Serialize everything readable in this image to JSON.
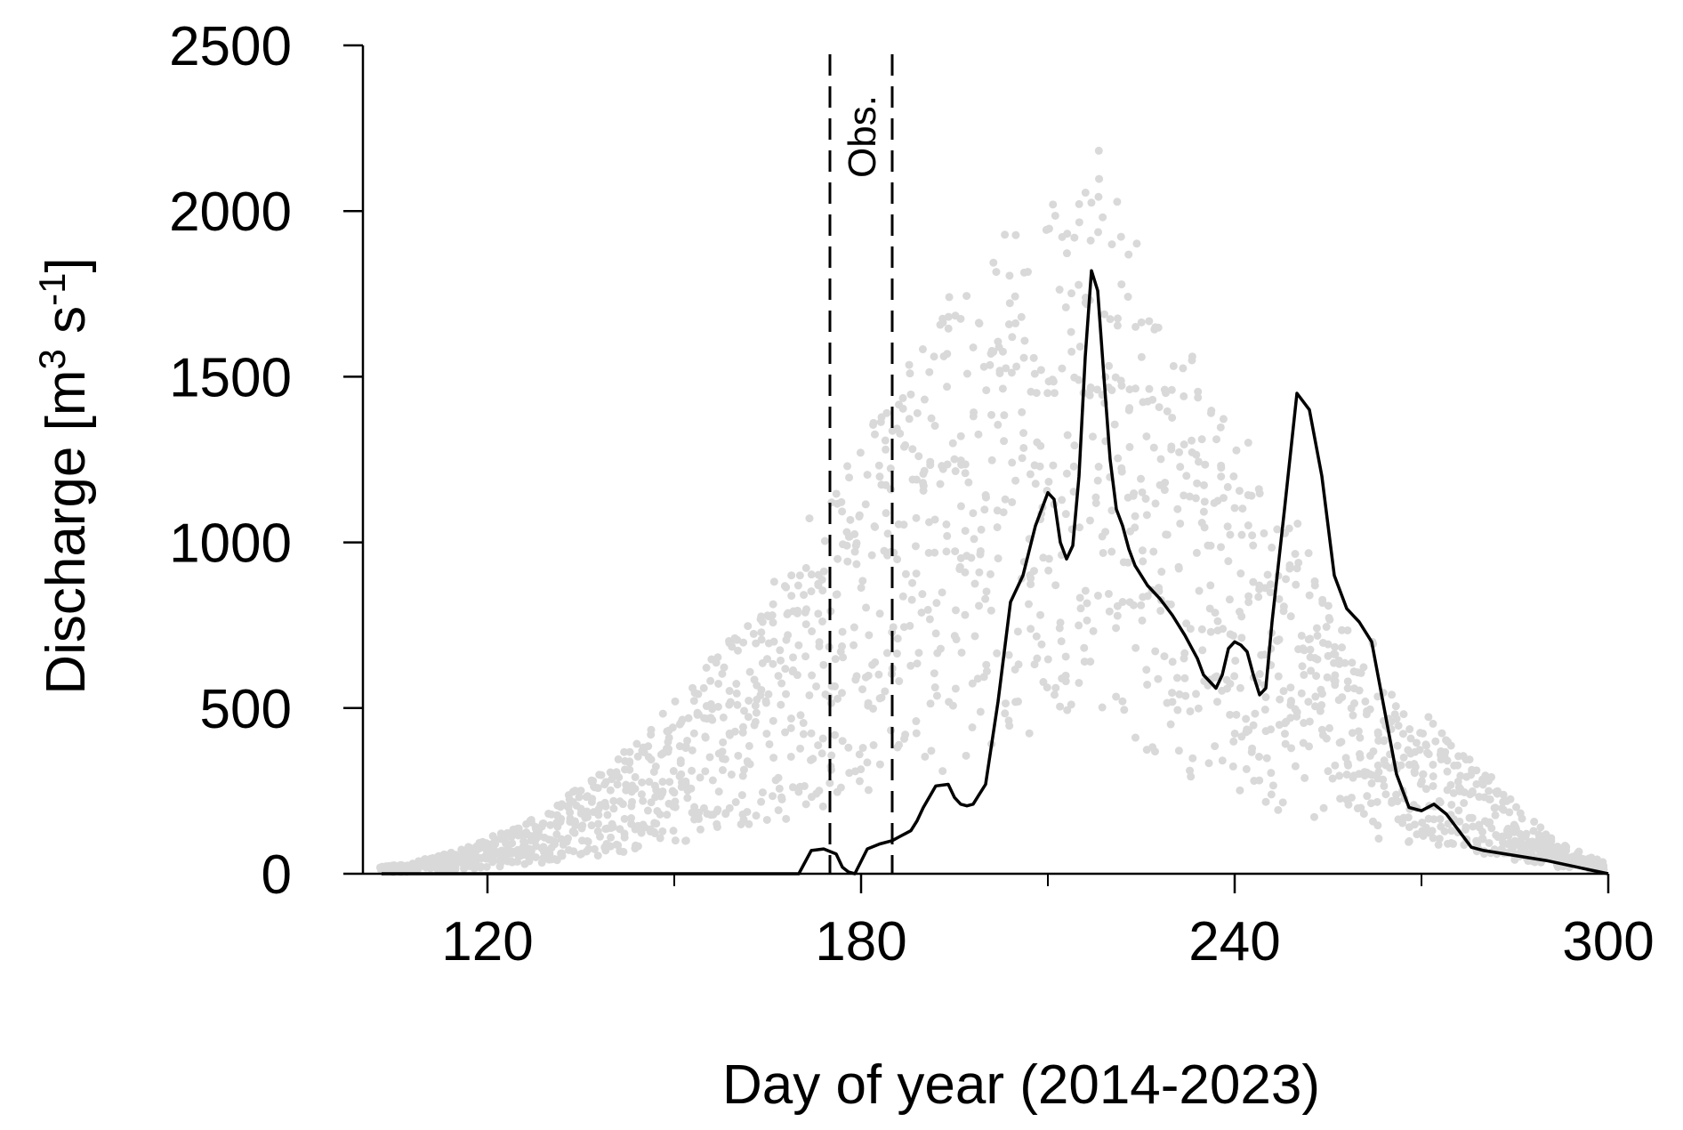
{
  "chart_data": {
    "type": "scatter",
    "xlabel": "Day of year (2014-2023)",
    "ylabel_main": "Discharge [m",
    "ylabel_sup1": "3",
    "ylabel_mid": " s",
    "ylabel_sup2": "-1",
    "ylabel_end": "]",
    "xlim": [
      100,
      300
    ],
    "ylim": [
      0,
      2500
    ],
    "x_ticks": [
      120,
      180,
      240,
      300
    ],
    "x_minor_ticks": [
      150,
      210,
      270
    ],
    "y_ticks": [
      0,
      500,
      1000,
      1500,
      2000,
      2500
    ],
    "annotation": {
      "label": "Obs.",
      "x_start": 175,
      "x_end": 185
    },
    "colors": {
      "scatter": "#d9d9d9",
      "line": "#000000",
      "axis": "#000000"
    },
    "series": [
      {
        "description_key": "mean",
        "x": [
          103,
          106,
          110,
          112,
          120,
          130,
          140,
          150,
          160,
          170,
          172,
          174,
          176,
          177,
          178,
          179,
          181,
          183,
          185,
          186,
          187,
          188,
          189,
          190,
          192,
          194,
          195,
          196,
          197,
          198,
          199,
          200,
          202,
          204,
          206,
          208,
          210,
          211,
          212,
          213,
          214,
          215,
          216,
          217,
          218,
          219,
          220,
          221,
          222,
          223,
          224,
          225,
          226,
          228,
          230,
          232,
          234,
          235,
          236,
          237,
          238,
          239,
          240,
          241,
          242,
          243,
          244,
          245,
          246,
          248,
          250,
          252,
          254,
          256,
          258,
          260,
          262,
          264,
          266,
          268,
          270,
          272,
          274,
          276,
          278,
          280,
          285,
          290,
          295,
          300
        ],
        "y": [
          0,
          0,
          0,
          0,
          0,
          0,
          0,
          0,
          0,
          0,
          70,
          75,
          60,
          20,
          5,
          0,
          75,
          90,
          100,
          110,
          120,
          130,
          160,
          200,
          265,
          270,
          230,
          210,
          205,
          210,
          240,
          270,
          520,
          820,
          900,
          1050,
          1150,
          1130,
          1000,
          950,
          990,
          1200,
          1560,
          1820,
          1760,
          1500,
          1250,
          1100,
          1050,
          980,
          930,
          900,
          870,
          830,
          780,
          720,
          650,
          600,
          580,
          560,
          600,
          680,
          700,
          690,
          670,
          600,
          540,
          560,
          760,
          1100,
          1450,
          1400,
          1200,
          900,
          800,
          760,
          700,
          500,
          300,
          200,
          190,
          210,
          180,
          130,
          80,
          70,
          55,
          40,
          20,
          0
        ]
      }
    ]
  }
}
